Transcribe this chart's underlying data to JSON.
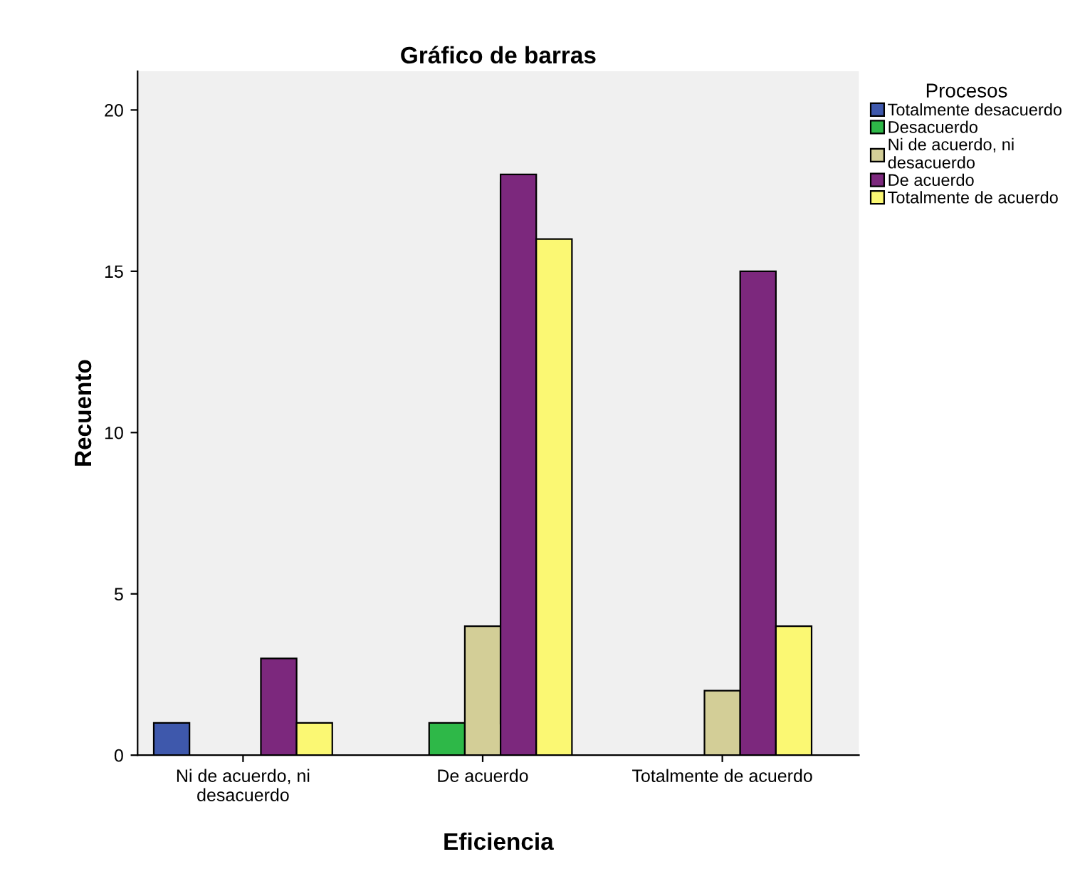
{
  "chart_data": {
    "type": "bar",
    "title": "Gráfico de barras",
    "xlabel": "Eficiencia",
    "ylabel": "Recuento",
    "legend_title": "Procesos",
    "categories": [
      "Ni de acuerdo, ni\ndesacuerdo",
      "De acuerdo",
      "Totalmente de acuerdo"
    ],
    "series": [
      {
        "name": "Totalmente desacuerdo",
        "color": "#3e58ac",
        "values": [
          1,
          null,
          null
        ]
      },
      {
        "name": "Desacuerdo",
        "color": "#2eb848",
        "values": [
          null,
          1,
          null
        ]
      },
      {
        "name": "Ni de acuerdo, ni\ndesacuerdo",
        "color": "#d3ce97",
        "values": [
          null,
          4,
          2
        ]
      },
      {
        "name": "De acuerdo",
        "color": "#7c287d",
        "values": [
          3,
          18,
          15
        ]
      },
      {
        "name": "Totalmente de acuerdo",
        "color": "#fbf873",
        "values": [
          1,
          16,
          4
        ]
      }
    ],
    "ylim": [
      0,
      21.2
    ],
    "yticks": [
      0,
      5,
      10,
      15,
      20
    ],
    "grid": false,
    "legend": "right"
  }
}
